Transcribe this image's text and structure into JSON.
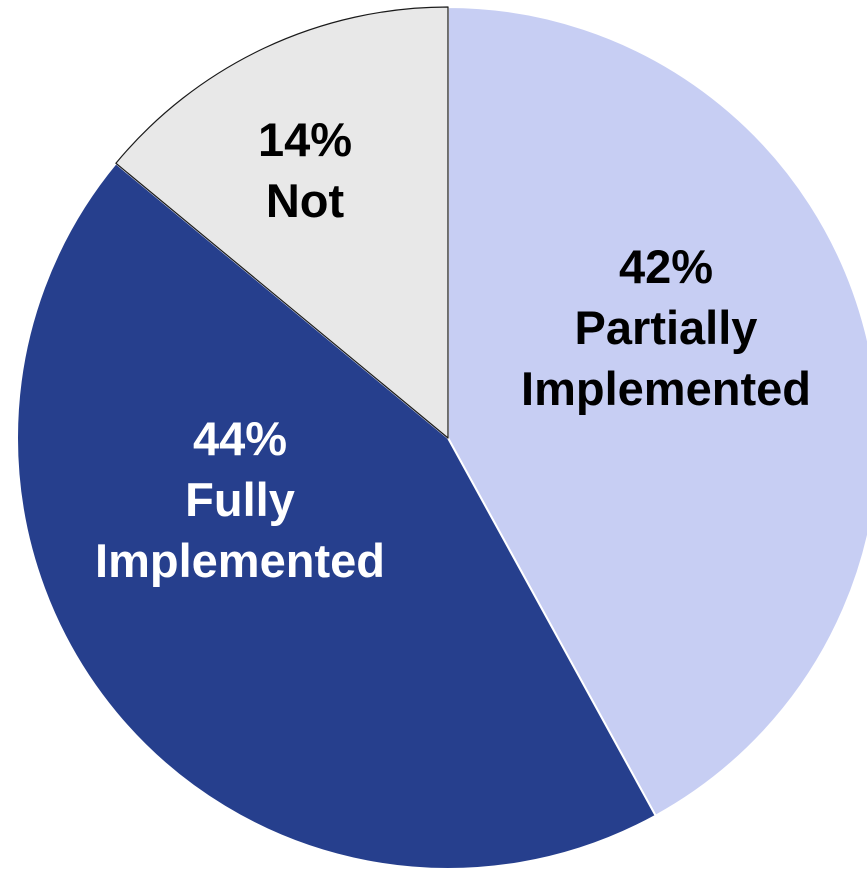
{
  "chart_data": {
    "type": "pie",
    "title": "",
    "slices": [
      {
        "label": "Partially Implemented",
        "value": 42,
        "percent_text": "42%",
        "name_lines": [
          "Partially",
          "Implemented"
        ],
        "color": "#c7cef3"
      },
      {
        "label": "Fully Implemented",
        "value": 44,
        "percent_text": "44%",
        "name_lines": [
          "Fully",
          "Implemented"
        ],
        "color": "#263f8d"
      },
      {
        "label": "Not",
        "value": 14,
        "percent_text": "14%",
        "name_lines": [
          "Not"
        ],
        "color": "#e8e8e8"
      }
    ],
    "start_angle_deg": 0,
    "direction": "clockwise",
    "legend": "none"
  }
}
